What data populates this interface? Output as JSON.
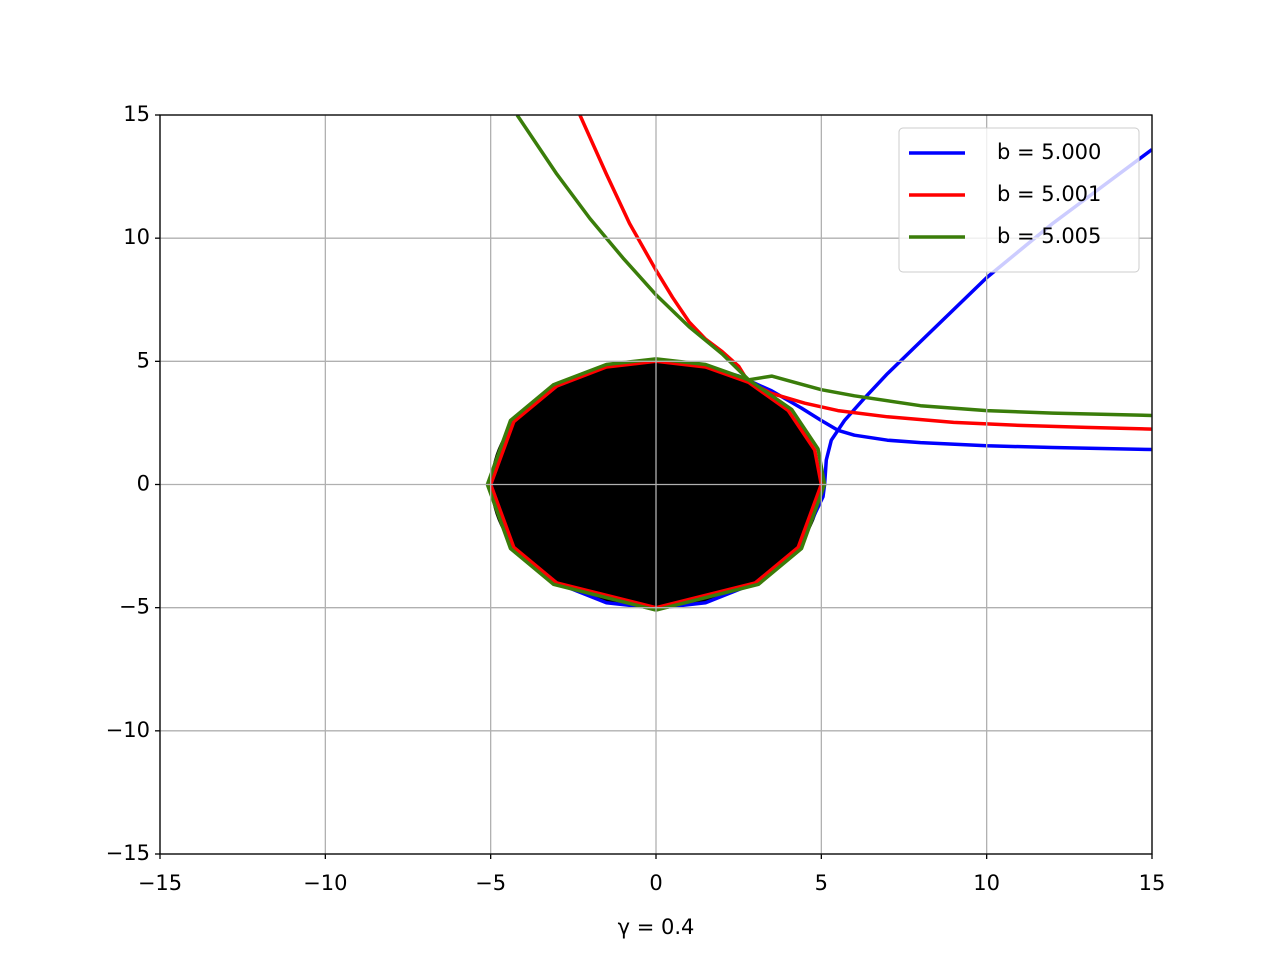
{
  "chart_data": {
    "type": "line",
    "xlabel": "γ = 0.4",
    "xlim": [
      -15,
      15
    ],
    "ylim": [
      -15,
      15
    ],
    "xticks": [
      {
        "value": -15,
        "label": "−15"
      },
      {
        "value": -10,
        "label": "−10"
      },
      {
        "value": -5,
        "label": "−5"
      },
      0,
      5,
      10,
      15
    ],
    "yticks": [
      {
        "value": -15,
        "label": "−15"
      },
      {
        "value": -10,
        "label": "−10"
      },
      {
        "value": -5,
        "label": "−5"
      },
      0,
      5,
      10,
      15
    ],
    "grid": true,
    "legend": "upper right",
    "disk": {
      "center": [
        0,
        0
      ],
      "radius": 5,
      "color": "#000000"
    },
    "series": [
      {
        "name": "b = 5.000",
        "color": "#0000ff",
        "x": [
          15,
          12,
          10,
          8,
          7,
          6,
          5.5,
          5,
          4.4,
          3.5,
          2.5,
          1.3,
          0,
          -1.5,
          -3,
          -4.3,
          -5,
          -4.3,
          -3,
          -1.5,
          0,
          1.5,
          3,
          4.3,
          5.05,
          5.1,
          5.15,
          5.3,
          5.7,
          6.3,
          7,
          8,
          10,
          12,
          15
        ],
        "values": [
          1.42,
          1.5,
          1.57,
          1.7,
          1.8,
          2.0,
          2.2,
          2.6,
          3.1,
          3.8,
          4.4,
          4.85,
          5.02,
          4.8,
          4.0,
          2.6,
          0,
          -2.6,
          -4.0,
          -4.8,
          -5.02,
          -4.8,
          -4.0,
          -2.6,
          -0.5,
          0,
          1.0,
          1.8,
          2.6,
          3.5,
          4.5,
          5.8,
          8.4,
          10.6,
          13.6
        ]
      },
      {
        "name": "b = 5.001",
        "color": "#ff0000",
        "x": [
          -2.3,
          -1.5,
          -0.8,
          0,
          0.5,
          1,
          1.5,
          2,
          2.5,
          2.8,
          4,
          4.8,
          5,
          4.3,
          3,
          0,
          -3,
          -4.3,
          -5,
          -4.3,
          -3,
          -1.5,
          0,
          1.5,
          2.8,
          3.5,
          4.5,
          5.5,
          7,
          9,
          11,
          13,
          15
        ],
        "values": [
          15,
          12.6,
          10.6,
          8.7,
          7.6,
          6.6,
          5.9,
          5.4,
          4.8,
          4.15,
          3.0,
          1.4,
          0,
          -2.55,
          -4.0,
          -5.0,
          -4.0,
          -2.55,
          0,
          2.55,
          4.0,
          4.77,
          5.0,
          4.77,
          4.15,
          3.7,
          3.3,
          3.0,
          2.75,
          2.52,
          2.4,
          2.32,
          2.25
        ]
      },
      {
        "name": "b = 5.005",
        "color": "#3a7d0a",
        "x": [
          -4.2,
          -3,
          -2,
          -1,
          0,
          1,
          2,
          2.8,
          4.1,
          4.9,
          5.1,
          4.4,
          3.1,
          0,
          -3.1,
          -4.4,
          -5.1,
          -4.4,
          -3.1,
          -1.5,
          0,
          1.5,
          2.8,
          3.5,
          5,
          6,
          8,
          10,
          12,
          15
        ],
        "values": [
          15,
          12.6,
          10.8,
          9.2,
          7.7,
          6.4,
          5.3,
          4.25,
          3.05,
          1.45,
          0,
          -2.6,
          -4.05,
          -5.1,
          -4.05,
          -2.6,
          0,
          2.6,
          4.05,
          4.87,
          5.1,
          4.87,
          4.25,
          4.4,
          3.85,
          3.6,
          3.2,
          3.0,
          2.9,
          2.8
        ]
      }
    ]
  }
}
